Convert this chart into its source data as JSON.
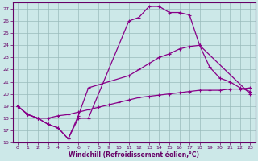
{
  "xlabel": "Windchill (Refroidissement éolien,°C)",
  "background_color": "#cce8e8",
  "line_color": "#880088",
  "xlim": [
    -0.5,
    23.5
  ],
  "ylim": [
    16,
    27.5
  ],
  "yticks": [
    16,
    17,
    18,
    19,
    20,
    21,
    22,
    23,
    24,
    25,
    26,
    27
  ],
  "xticks": [
    0,
    1,
    2,
    3,
    4,
    5,
    6,
    7,
    8,
    9,
    10,
    11,
    12,
    13,
    14,
    15,
    16,
    17,
    18,
    19,
    20,
    21,
    22,
    23
  ],
  "line1_x": [
    0,
    1,
    2,
    3,
    4,
    5,
    6,
    7,
    11,
    12,
    13,
    14,
    15,
    16,
    17,
    18,
    23
  ],
  "line1_y": [
    19,
    18.3,
    18,
    17.5,
    17.2,
    16.3,
    18,
    18,
    26,
    26.3,
    27.2,
    27.2,
    26.7,
    26.7,
    26.5,
    24,
    20
  ],
  "line2_x": [
    0,
    1,
    2,
    3,
    4,
    5,
    6,
    7,
    11,
    12,
    13,
    14,
    15,
    16,
    17,
    18,
    19,
    20,
    21,
    22,
    23
  ],
  "line2_y": [
    19,
    18.3,
    18,
    17.5,
    17.2,
    16.3,
    18.2,
    20.5,
    21.5,
    22,
    22.5,
    23,
    23.3,
    23.7,
    23.9,
    24.0,
    22.2,
    21.3,
    21,
    20.5,
    20.2
  ],
  "line3_x": [
    0,
    1,
    2,
    3,
    4,
    5,
    6,
    7,
    8,
    9,
    10,
    11,
    12,
    13,
    14,
    15,
    16,
    17,
    18,
    19,
    20,
    21,
    22,
    23
  ],
  "line3_y": [
    19,
    18.3,
    18,
    18,
    18.2,
    18.3,
    18.5,
    18.7,
    18.9,
    19.1,
    19.3,
    19.5,
    19.7,
    19.8,
    19.9,
    20.0,
    20.1,
    20.2,
    20.3,
    20.3,
    20.3,
    20.4,
    20.4,
    20.5
  ]
}
